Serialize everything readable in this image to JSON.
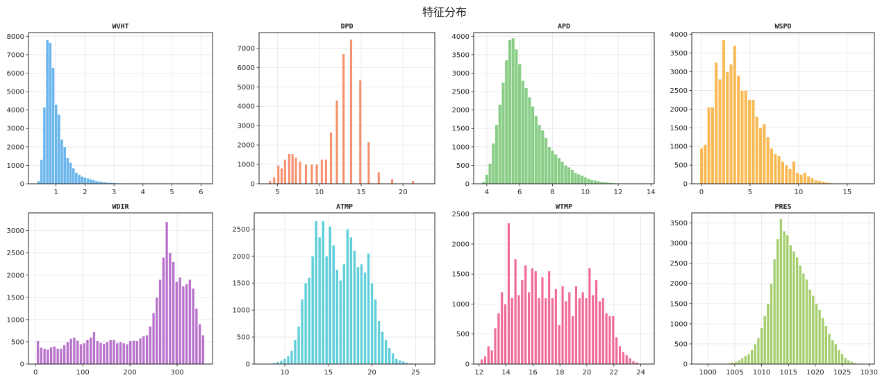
{
  "figure": {
    "title": "特征分布"
  },
  "chart_data": [
    {
      "type": "bar",
      "title": "WVHT",
      "color": "#5BAEEA",
      "grid": true,
      "xlim": [
        0.05,
        6.4
      ],
      "ylim": [
        0,
        8200
      ],
      "xticks": [
        1,
        2,
        3,
        4,
        5,
        6
      ],
      "yticks": [
        0,
        1000,
        2000,
        3000,
        4000,
        5000,
        6000,
        7000,
        8000
      ],
      "bin_width": 0.1,
      "x": [
        0.4,
        0.5,
        0.6,
        0.7,
        0.8,
        0.9,
        1.0,
        1.1,
        1.2,
        1.3,
        1.4,
        1.5,
        1.6,
        1.7,
        1.8,
        1.9,
        2.0,
        2.1,
        2.2,
        2.3,
        2.4,
        2.5,
        2.6,
        2.7,
        2.8,
        2.9,
        3.0,
        3.1,
        3.2,
        3.3,
        3.4,
        3.5,
        3.6,
        3.7,
        3.8,
        3.9,
        4.0,
        4.2,
        4.5,
        5.0,
        5.5,
        6.0
      ],
      "values": [
        150,
        1300,
        4150,
        7800,
        7650,
        6300,
        4300,
        3750,
        2400,
        2000,
        1400,
        1150,
        850,
        600,
        500,
        400,
        350,
        300,
        250,
        200,
        150,
        130,
        100,
        90,
        70,
        60,
        50,
        40,
        30,
        25,
        20,
        15,
        12,
        10,
        8,
        6,
        5,
        4,
        3,
        2,
        1,
        1
      ]
    },
    {
      "type": "bar",
      "title": "DPD",
      "color": "#F4845F",
      "grid": true,
      "xlim": [
        2.8,
        23.8
      ],
      "ylim": [
        0,
        7800
      ],
      "xticks": [
        5,
        10,
        15,
        20
      ],
      "yticks": [
        0,
        1000,
        2000,
        3000,
        4000,
        5000,
        6000,
        7000
      ],
      "bin_width": 0.3,
      "x": [
        4.1,
        4.6,
        5.1,
        5.5,
        5.9,
        6.4,
        6.8,
        7.2,
        7.7,
        8.4,
        9.1,
        9.7,
        10.3,
        10.8,
        11.4,
        12.1,
        12.9,
        13.8,
        14.9,
        15.9,
        17.1,
        18.7,
        21.2
      ],
      "values": [
        150,
        350,
        950,
        800,
        1250,
        1550,
        1550,
        1350,
        1150,
        1000,
        1000,
        1000,
        1250,
        1250,
        2650,
        4300,
        6700,
        7450,
        5350,
        2150,
        600,
        250,
        150
      ]
    },
    {
      "type": "bar",
      "title": "APD",
      "color": "#7DC87A",
      "grid": true,
      "xlim": [
        3.2,
        14.2
      ],
      "ylim": [
        0,
        4100
      ],
      "xticks": [
        4,
        6,
        8,
        10,
        12,
        14
      ],
      "yticks": [
        0,
        500,
        1000,
        1500,
        2000,
        2500,
        3000,
        3500,
        4000
      ],
      "bin_width": 0.2,
      "x": [
        3.8,
        4.0,
        4.2,
        4.4,
        4.6,
        4.8,
        5.0,
        5.2,
        5.4,
        5.6,
        5.8,
        6.0,
        6.2,
        6.4,
        6.6,
        6.8,
        7.0,
        7.2,
        7.4,
        7.6,
        7.8,
        8.0,
        8.2,
        8.4,
        8.6,
        8.8,
        9.0,
        9.2,
        9.4,
        9.6,
        9.8,
        10.0,
        10.2,
        10.4,
        10.6,
        10.8,
        11.0,
        11.2,
        11.4,
        11.6,
        11.8,
        12.0,
        12.2,
        12.5,
        13.0,
        13.5
      ],
      "values": [
        50,
        250,
        550,
        1100,
        1600,
        2150,
        2750,
        3350,
        3900,
        3950,
        3650,
        3250,
        2800,
        2600,
        2350,
        2100,
        1850,
        1600,
        1450,
        1250,
        1000,
        900,
        800,
        700,
        600,
        500,
        450,
        380,
        300,
        260,
        220,
        180,
        140,
        110,
        90,
        70,
        55,
        45,
        35,
        25,
        20,
        15,
        10,
        8,
        5,
        3
      ]
    },
    {
      "type": "bar",
      "title": "WSPD",
      "color": "#F8B242",
      "grid": true,
      "xlim": [
        -1.0,
        17.8
      ],
      "ylim": [
        0,
        4050
      ],
      "xticks": [
        0,
        5,
        10,
        15
      ],
      "yticks": [
        0,
        500,
        1000,
        1500,
        2000,
        2500,
        3000,
        3500,
        4000
      ],
      "bin_width": 0.33,
      "x": [
        0.0,
        0.38,
        0.76,
        1.14,
        1.52,
        1.9,
        2.28,
        2.66,
        3.04,
        3.42,
        3.8,
        4.18,
        4.56,
        4.94,
        5.32,
        5.7,
        6.08,
        6.46,
        6.84,
        7.22,
        7.6,
        7.98,
        8.36,
        8.74,
        9.12,
        9.5,
        9.88,
        10.26,
        10.64,
        11.02,
        11.4,
        11.78,
        12.16,
        12.54,
        12.92,
        13.3,
        14.5,
        16.0
      ],
      "values": [
        950,
        1050,
        2050,
        2050,
        3250,
        2800,
        3850,
        3000,
        3200,
        3700,
        2900,
        2500,
        2500,
        2250,
        2250,
        1800,
        1500,
        1600,
        1250,
        950,
        800,
        750,
        600,
        500,
        400,
        600,
        300,
        250,
        300,
        200,
        150,
        100,
        80,
        60,
        40,
        20,
        8,
        3
      ]
    },
    {
      "type": "bar",
      "title": "WDIR",
      "color": "#B063C5",
      "grid": true,
      "xlim": [
        -15,
        375
      ],
      "ylim": [
        0,
        3400
      ],
      "xticks": [
        0,
        100,
        200,
        300
      ],
      "yticks": [
        0,
        500,
        1000,
        1500,
        2000,
        2500,
        3000
      ],
      "bin_width": 5.7,
      "x": [
        5,
        12,
        19,
        26,
        33,
        40,
        47,
        54,
        61,
        68,
        75,
        82,
        89,
        96,
        103,
        110,
        117,
        124,
        131,
        138,
        145,
        152,
        159,
        166,
        173,
        180,
        187,
        194,
        201,
        208,
        215,
        222,
        229,
        236,
        243,
        250,
        257,
        264,
        271,
        278,
        285,
        292,
        299,
        306,
        313,
        320,
        327,
        334,
        341,
        348,
        355
      ],
      "values": [
        520,
        370,
        350,
        330,
        380,
        400,
        350,
        350,
        430,
        500,
        570,
        600,
        530,
        450,
        470,
        550,
        600,
        720,
        520,
        480,
        460,
        500,
        550,
        550,
        470,
        500,
        470,
        450,
        520,
        530,
        520,
        580,
        630,
        650,
        850,
        1150,
        1500,
        1900,
        2400,
        3200,
        2500,
        2300,
        1850,
        1950,
        1750,
        1800,
        1900,
        1700,
        1250,
        900,
        650
      ]
    },
    {
      "type": "bar",
      "title": "ATMP",
      "color": "#4ECAD6",
      "grid": true,
      "xlim": [
        6.5,
        27.2
      ],
      "ylim": [
        0,
        2800
      ],
      "xticks": [
        10,
        15,
        20,
        25
      ],
      "yticks": [
        0,
        500,
        1000,
        1500,
        2000,
        2500
      ],
      "bin_width": 0.31,
      "x": [
        8.0,
        8.4,
        8.8,
        9.2,
        9.6,
        10.0,
        10.4,
        10.8,
        11.2,
        11.6,
        12.0,
        12.4,
        12.8,
        13.2,
        13.6,
        14.0,
        14.4,
        14.8,
        15.2,
        15.6,
        16.0,
        16.4,
        16.8,
        17.2,
        17.6,
        18.0,
        18.4,
        18.8,
        19.2,
        19.6,
        20.0,
        20.4,
        20.8,
        21.2,
        21.6,
        22.0,
        22.4,
        22.8,
        23.2,
        23.6,
        24.0,
        24.5,
        25.0,
        25.5
      ],
      "values": [
        5,
        10,
        20,
        40,
        60,
        100,
        150,
        250,
        450,
        700,
        1200,
        1500,
        1600,
        2000,
        2650,
        2350,
        2650,
        2000,
        2550,
        2200,
        1750,
        1550,
        1850,
        2500,
        2350,
        2100,
        1800,
        1850,
        1700,
        2050,
        1500,
        1200,
        800,
        600,
        450,
        300,
        200,
        100,
        70,
        50,
        30,
        15,
        8,
        3
      ]
    },
    {
      "type": "bar",
      "title": "WTMP",
      "color": "#EE5A8C",
      "grid": true,
      "xlim": [
        11.6,
        25.0
      ],
      "ylim": [
        0,
        2520
      ],
      "xticks": [
        12,
        14,
        16,
        18,
        20,
        22,
        24
      ],
      "yticks": [
        0,
        500,
        1000,
        1500,
        2000,
        2500
      ],
      "bin_width": 0.19,
      "x": [
        12.2,
        12.45,
        12.7,
        12.95,
        13.2,
        13.45,
        13.7,
        13.95,
        14.2,
        14.45,
        14.7,
        14.95,
        15.2,
        15.45,
        15.7,
        15.95,
        16.2,
        16.45,
        16.7,
        16.95,
        17.2,
        17.45,
        17.7,
        17.95,
        18.2,
        18.45,
        18.7,
        18.95,
        19.2,
        19.45,
        19.7,
        19.95,
        20.2,
        20.45,
        20.7,
        20.95,
        21.2,
        21.45,
        21.7,
        21.95,
        22.2,
        22.45,
        22.7,
        22.95,
        23.2,
        23.45,
        23.7
      ],
      "values": [
        80,
        130,
        300,
        230,
        600,
        850,
        1200,
        1000,
        2350,
        1100,
        1750,
        1150,
        1400,
        1650,
        1200,
        1600,
        1550,
        1100,
        1450,
        1100,
        1550,
        1100,
        1250,
        650,
        1300,
        1050,
        1200,
        800,
        1300,
        1100,
        1200,
        1100,
        1600,
        1150,
        1400,
        1050,
        1100,
        850,
        800,
        800,
        450,
        300,
        200,
        150,
        100,
        50,
        30
      ]
    },
    {
      "type": "bar",
      "title": "PRES",
      "color": "#9BC95E",
      "grid": true,
      "xlim": [
        997,
        1031
      ],
      "ylim": [
        0,
        3750
      ],
      "xticks": [
        1000,
        1005,
        1010,
        1015,
        1020,
        1025,
        1030
      ],
      "yticks": [
        0,
        500,
        1000,
        1500,
        2000,
        2500,
        3000,
        3500
      ],
      "bin_width": 0.5,
      "x": [
        1001.0,
        1002.5,
        1004.0,
        1004.6,
        1005.2,
        1005.8,
        1006.4,
        1007.0,
        1007.6,
        1008.2,
        1008.8,
        1009.4,
        1010.0,
        1010.6,
        1011.2,
        1011.8,
        1012.4,
        1013.0,
        1013.6,
        1014.2,
        1014.8,
        1015.4,
        1016.0,
        1016.6,
        1017.2,
        1017.8,
        1018.4,
        1019.0,
        1019.6,
        1020.2,
        1020.8,
        1021.4,
        1022.0,
        1022.6,
        1023.2,
        1023.8,
        1024.4,
        1025.0,
        1025.6,
        1026.2,
        1026.8,
        1027.4,
        1028.0,
        1029.0
      ],
      "values": [
        3,
        8,
        20,
        40,
        60,
        100,
        150,
        200,
        250,
        350,
        500,
        650,
        900,
        1200,
        1500,
        2000,
        2600,
        3100,
        3600,
        3300,
        3200,
        2950,
        2800,
        2650,
        2450,
        2250,
        2100,
        1850,
        1700,
        1500,
        1350,
        1150,
        950,
        750,
        600,
        500,
        350,
        250,
        150,
        100,
        60,
        30,
        15,
        5
      ]
    }
  ]
}
